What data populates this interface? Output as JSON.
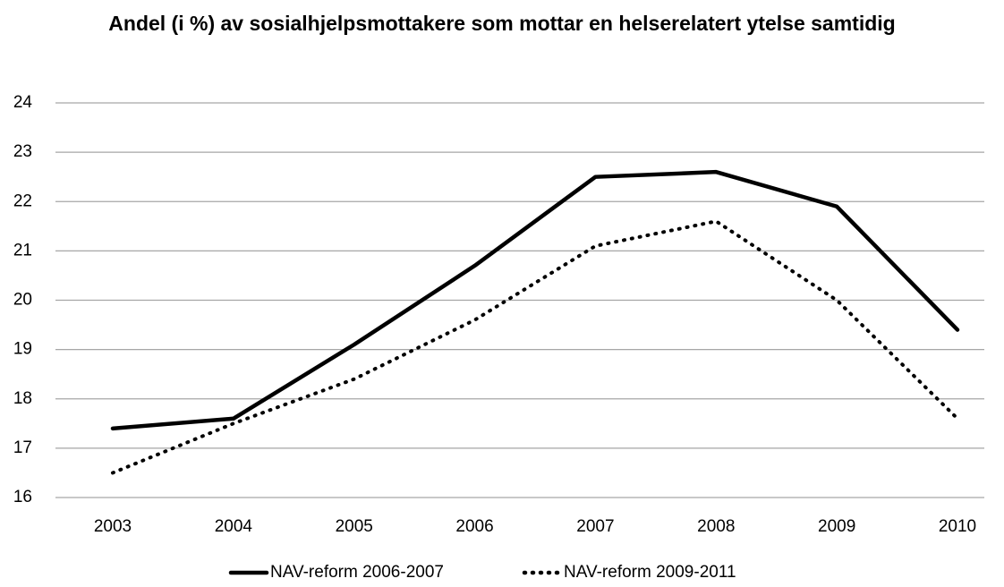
{
  "chart_data": {
    "type": "line",
    "title": "Andel (i %) av sosialhjelpsmottakere som mottar en helserelatert ytelse samtidig",
    "categories": [
      "2003",
      "2004",
      "2005",
      "2006",
      "2007",
      "2008",
      "2009",
      "2010"
    ],
    "series": [
      {
        "name": "NAV-reform 2006-2007",
        "color": "#000000",
        "style": "solid",
        "values": [
          17.4,
          17.6,
          19.1,
          20.7,
          22.5,
          22.6,
          21.9,
          19.4
        ]
      },
      {
        "name": "NAV-reform 2009-2011",
        "color": "#000000",
        "style": "dotted",
        "values": [
          16.5,
          17.5,
          18.4,
          19.6,
          21.1,
          21.6,
          20.0,
          17.6
        ]
      }
    ],
    "ylim": [
      16,
      24
    ],
    "yticks": [
      16,
      17,
      18,
      19,
      20,
      21,
      22,
      23,
      24
    ],
    "grid": true,
    "legend": "bottom"
  }
}
